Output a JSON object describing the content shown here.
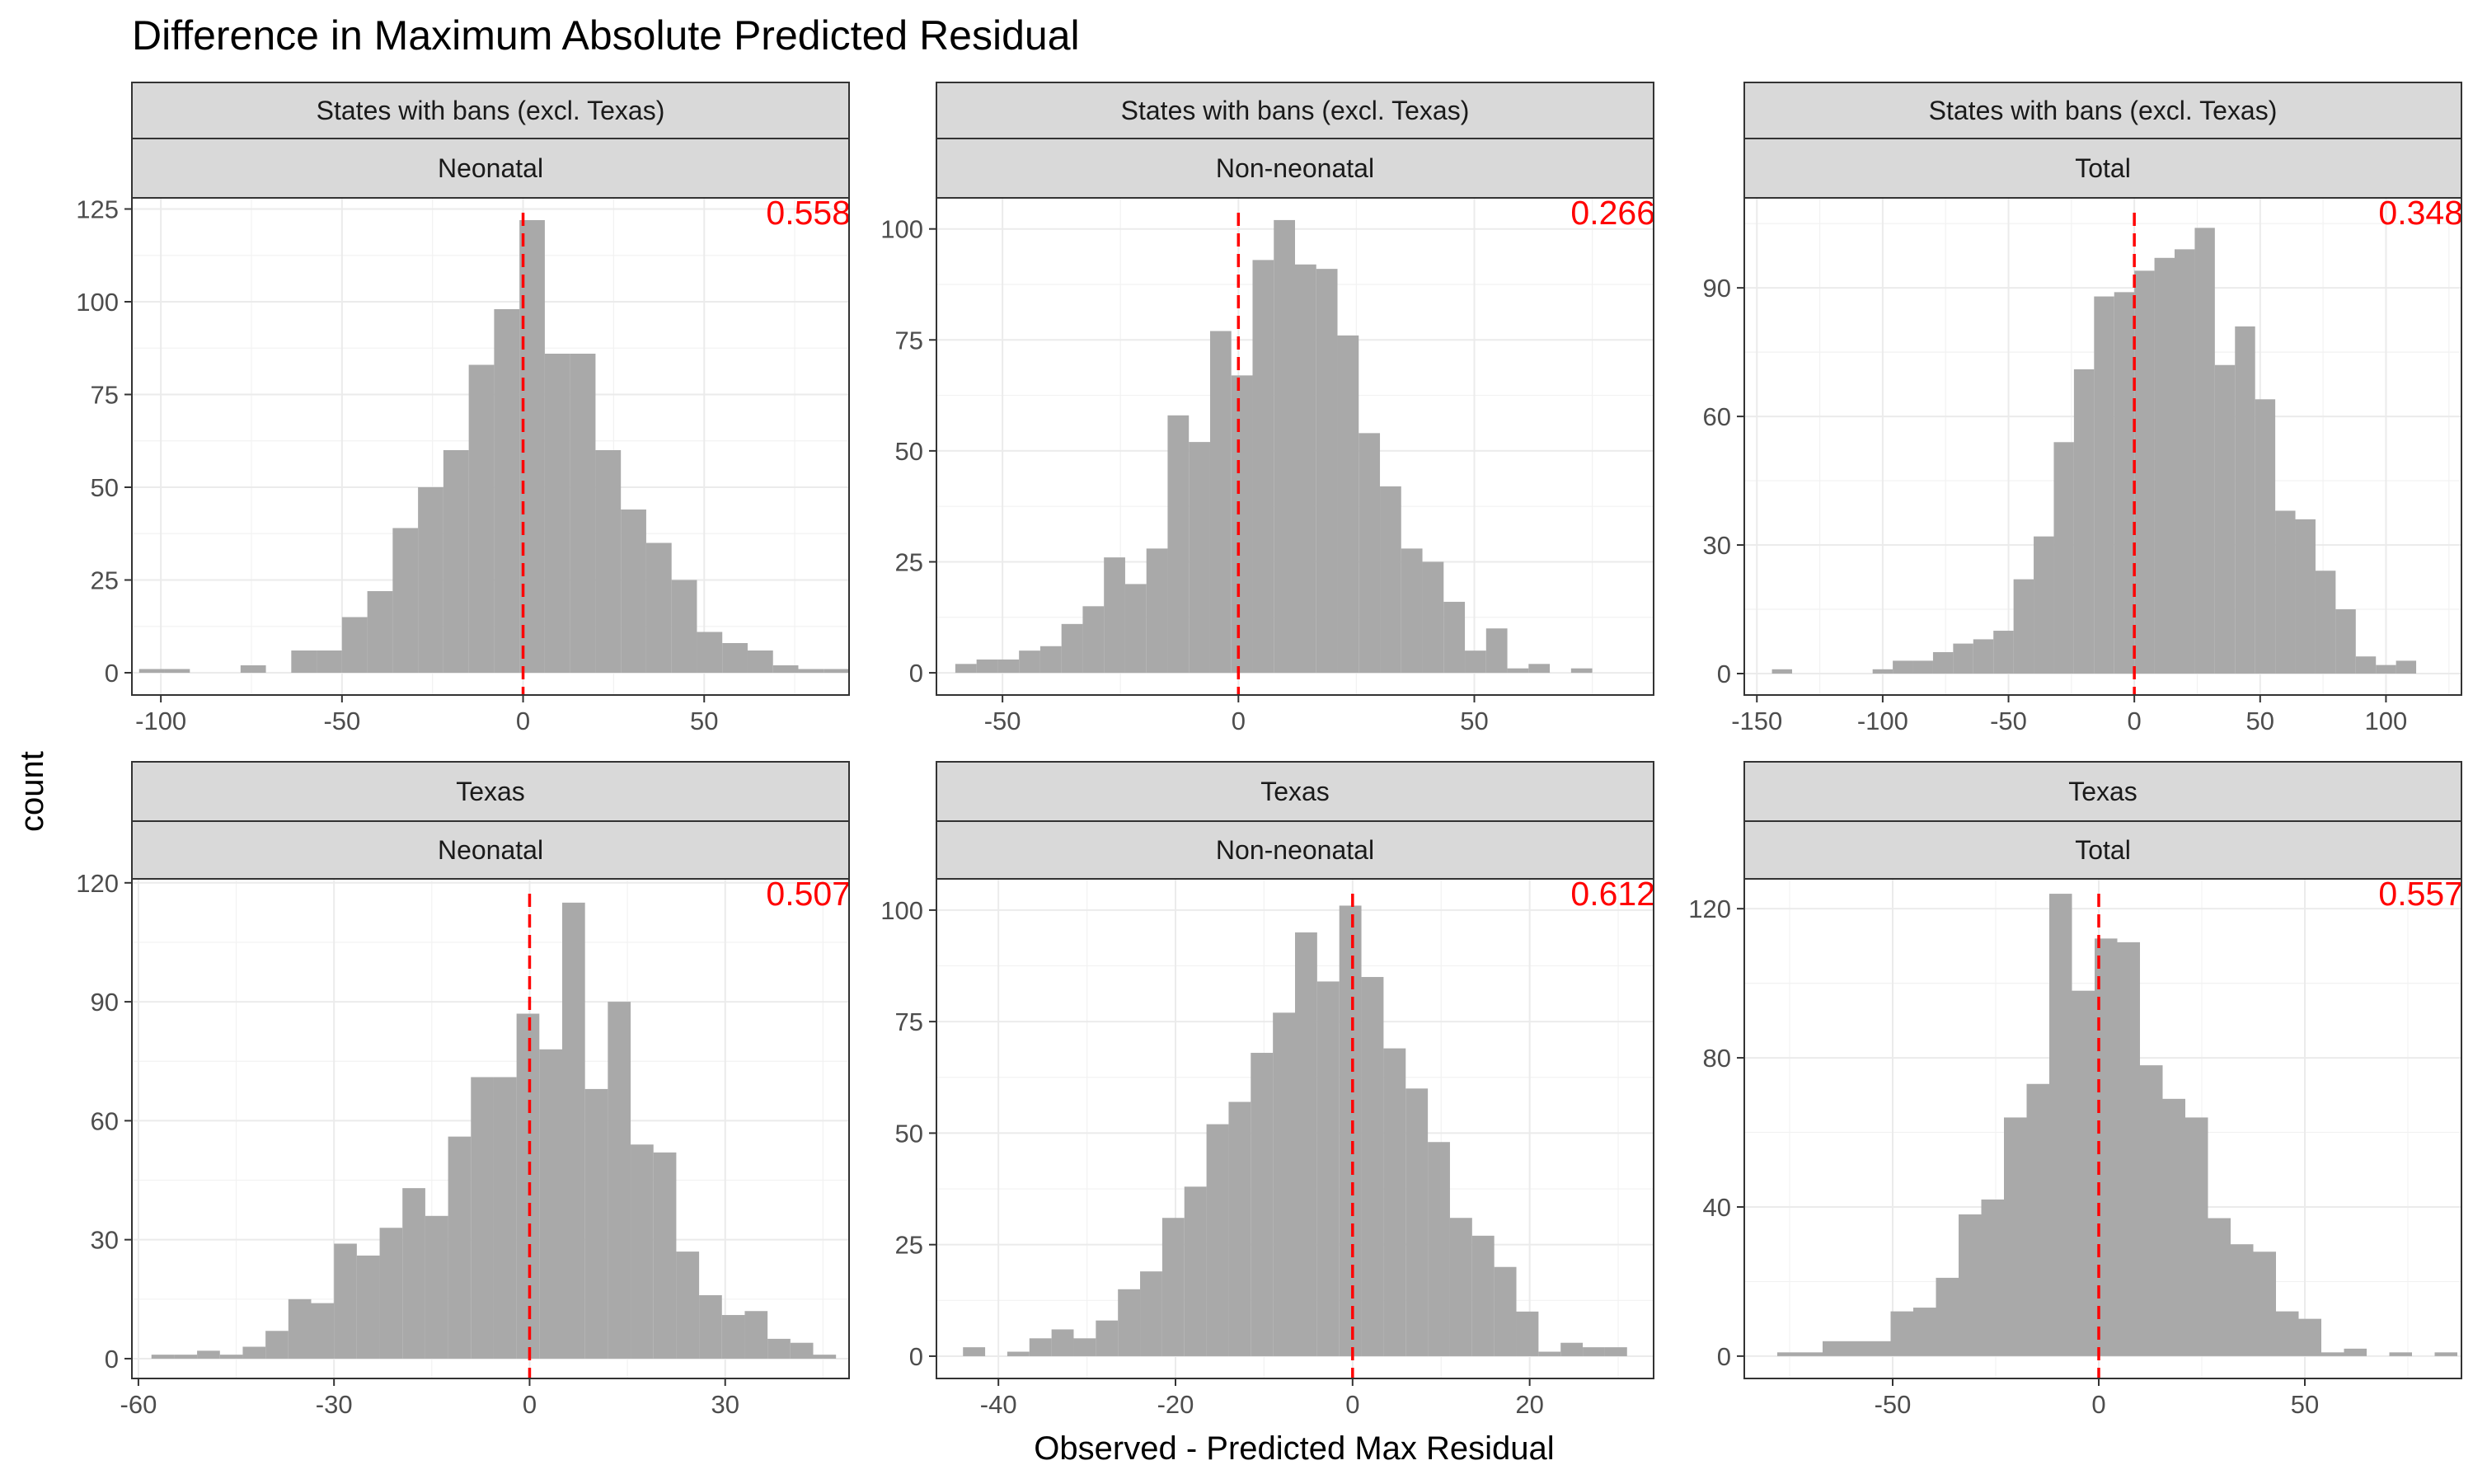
{
  "title": "Difference in Maximum Absolute Predicted Residual",
  "xlabel": "Observed - Predicted Max Residual",
  "ylabel": "count",
  "colors": {
    "bar": "#a9a9a9",
    "reference_line": "#ff0000",
    "pvalue": "#ff0000",
    "strip": "#d9d9d9",
    "grid": "#ebebeb"
  },
  "chart_data": [
    {
      "type": "bar",
      "group": "States with bans (excl. Texas)",
      "outcome": "Neonatal",
      "pvalue": "0.558",
      "reference_x": 0,
      "x_range": [
        -108,
        90
      ],
      "y_range": [
        -6,
        128
      ],
      "x_ticks": [
        -100,
        -50,
        0,
        50
      ],
      "y_ticks": [
        0,
        25,
        50,
        75,
        100,
        125
      ],
      "bins": [
        {
          "x0": -106,
          "x1": -99,
          "count": 1
        },
        {
          "x0": -99,
          "x1": -92,
          "count": 1
        },
        {
          "x0": -92,
          "x1": -85,
          "count": 0
        },
        {
          "x0": -85,
          "x1": -78,
          "count": 0
        },
        {
          "x0": -78,
          "x1": -71,
          "count": 2
        },
        {
          "x0": -71,
          "x1": -64,
          "count": 0
        },
        {
          "x0": -64,
          "x1": -57,
          "count": 6
        },
        {
          "x0": -57,
          "x1": -50,
          "count": 6
        },
        {
          "x0": -50,
          "x1": -43,
          "count": 15
        },
        {
          "x0": -43,
          "x1": -36,
          "count": 22
        },
        {
          "x0": -36,
          "x1": -29,
          "count": 39
        },
        {
          "x0": -29,
          "x1": -22,
          "count": 50
        },
        {
          "x0": -22,
          "x1": -15,
          "count": 60
        },
        {
          "x0": -15,
          "x1": -8,
          "count": 83
        },
        {
          "x0": -8,
          "x1": -1,
          "count": 98
        },
        {
          "x0": -1,
          "x1": 6,
          "count": 122
        },
        {
          "x0": 6,
          "x1": 13,
          "count": 86
        },
        {
          "x0": 13,
          "x1": 20,
          "count": 86
        },
        {
          "x0": 20,
          "x1": 27,
          "count": 60
        },
        {
          "x0": 27,
          "x1": 34,
          "count": 44
        },
        {
          "x0": 34,
          "x1": 41,
          "count": 35
        },
        {
          "x0": 41,
          "x1": 48,
          "count": 25
        },
        {
          "x0": 48,
          "x1": 55,
          "count": 11
        },
        {
          "x0": 55,
          "x1": 62,
          "count": 8
        },
        {
          "x0": 62,
          "x1": 69,
          "count": 6
        },
        {
          "x0": 69,
          "x1": 76,
          "count": 2
        },
        {
          "x0": 76,
          "x1": 83,
          "count": 1
        },
        {
          "x0": 83,
          "x1": 90,
          "count": 1
        }
      ]
    },
    {
      "type": "bar",
      "group": "States with bans (excl. Texas)",
      "outcome": "Non-neonatal",
      "pvalue": "0.266",
      "reference_x": 0,
      "x_range": [
        -64,
        88
      ],
      "y_range": [
        -5,
        107
      ],
      "x_ticks": [
        -50,
        0,
        50
      ],
      "y_ticks": [
        0,
        25,
        50,
        75,
        100
      ],
      "bins": [
        {
          "x0": -60,
          "x1": -55.5,
          "count": 2
        },
        {
          "x0": -55.5,
          "x1": -51,
          "count": 3
        },
        {
          "x0": -51,
          "x1": -46.5,
          "count": 3
        },
        {
          "x0": -46.5,
          "x1": -42,
          "count": 5
        },
        {
          "x0": -42,
          "x1": -37.5,
          "count": 6
        },
        {
          "x0": -37.5,
          "x1": -33,
          "count": 11
        },
        {
          "x0": -33,
          "x1": -28.5,
          "count": 15
        },
        {
          "x0": -28.5,
          "x1": -24,
          "count": 26
        },
        {
          "x0": -24,
          "x1": -19.5,
          "count": 20
        },
        {
          "x0": -19.5,
          "x1": -15,
          "count": 28
        },
        {
          "x0": -15,
          "x1": -10.5,
          "count": 58
        },
        {
          "x0": -10.5,
          "x1": -6,
          "count": 52
        },
        {
          "x0": -6,
          "x1": -1.5,
          "count": 77
        },
        {
          "x0": -1.5,
          "x1": 3,
          "count": 67
        },
        {
          "x0": 3,
          "x1": 7.5,
          "count": 93
        },
        {
          "x0": 7.5,
          "x1": 12,
          "count": 102
        },
        {
          "x0": 12,
          "x1": 16.5,
          "count": 92
        },
        {
          "x0": 16.5,
          "x1": 21,
          "count": 91
        },
        {
          "x0": 21,
          "x1": 25.5,
          "count": 76
        },
        {
          "x0": 25.5,
          "x1": 30,
          "count": 54
        },
        {
          "x0": 30,
          "x1": 34.5,
          "count": 42
        },
        {
          "x0": 34.5,
          "x1": 39,
          "count": 28
        },
        {
          "x0": 39,
          "x1": 43.5,
          "count": 25
        },
        {
          "x0": 43.5,
          "x1": 48,
          "count": 16
        },
        {
          "x0": 48,
          "x1": 52.5,
          "count": 5
        },
        {
          "x0": 52.5,
          "x1": 57,
          "count": 10
        },
        {
          "x0": 57,
          "x1": 61.5,
          "count": 1
        },
        {
          "x0": 61.5,
          "x1": 66,
          "count": 2
        },
        {
          "x0": 66,
          "x1": 70.5,
          "count": 0
        },
        {
          "x0": 70.5,
          "x1": 75,
          "count": 1
        }
      ]
    },
    {
      "type": "bar",
      "group": "States with bans (excl. Texas)",
      "outcome": "Total",
      "pvalue": "0.348",
      "reference_x": 0,
      "x_range": [
        -155,
        130
      ],
      "y_range": [
        -5,
        111
      ],
      "x_ticks": [
        -150,
        -100,
        -50,
        0,
        50,
        100
      ],
      "y_ticks": [
        0,
        30,
        60,
        90
      ],
      "bins": [
        {
          "x0": -144,
          "x1": -136,
          "count": 1
        },
        {
          "x0": -104,
          "x1": -96,
          "count": 1
        },
        {
          "x0": -96,
          "x1": -88,
          "count": 3
        },
        {
          "x0": -88,
          "x1": -80,
          "count": 3
        },
        {
          "x0": -80,
          "x1": -72,
          "count": 5
        },
        {
          "x0": -72,
          "x1": -64,
          "count": 7
        },
        {
          "x0": -64,
          "x1": -56,
          "count": 8
        },
        {
          "x0": -56,
          "x1": -48,
          "count": 10
        },
        {
          "x0": -48,
          "x1": -40,
          "count": 22
        },
        {
          "x0": -40,
          "x1": -32,
          "count": 32
        },
        {
          "x0": -32,
          "x1": -24,
          "count": 54
        },
        {
          "x0": -24,
          "x1": -16,
          "count": 71
        },
        {
          "x0": -16,
          "x1": -8,
          "count": 88
        },
        {
          "x0": -8,
          "x1": 0,
          "count": 89
        },
        {
          "x0": 0,
          "x1": 8,
          "count": 94
        },
        {
          "x0": 8,
          "x1": 16,
          "count": 97
        },
        {
          "x0": 16,
          "x1": 24,
          "count": 99
        },
        {
          "x0": 24,
          "x1": 32,
          "count": 104
        },
        {
          "x0": 32,
          "x1": 40,
          "count": 72
        },
        {
          "x0": 40,
          "x1": 48,
          "count": 81
        },
        {
          "x0": 48,
          "x1": 56,
          "count": 64
        },
        {
          "x0": 56,
          "x1": 64,
          "count": 38
        },
        {
          "x0": 64,
          "x1": 72,
          "count": 36
        },
        {
          "x0": 72,
          "x1": 80,
          "count": 24
        },
        {
          "x0": 80,
          "x1": 88,
          "count": 15
        },
        {
          "x0": 88,
          "x1": 96,
          "count": 4
        },
        {
          "x0": 96,
          "x1": 104,
          "count": 2
        },
        {
          "x0": 104,
          "x1": 112,
          "count": 3
        }
      ]
    },
    {
      "type": "bar",
      "group": "Texas",
      "outcome": "Neonatal",
      "pvalue": "0.507",
      "reference_x": 0,
      "x_range": [
        -61,
        49
      ],
      "y_range": [
        -5,
        121
      ],
      "x_ticks": [
        -60,
        -30,
        0,
        30
      ],
      "y_ticks": [
        0,
        30,
        60,
        90,
        120
      ],
      "bins": [
        {
          "x0": -58,
          "x1": -54.5,
          "count": 1
        },
        {
          "x0": -54.5,
          "x1": -51,
          "count": 1
        },
        {
          "x0": -51,
          "x1": -47.5,
          "count": 2
        },
        {
          "x0": -47.5,
          "x1": -44,
          "count": 1
        },
        {
          "x0": -44,
          "x1": -40.5,
          "count": 3
        },
        {
          "x0": -40.5,
          "x1": -37,
          "count": 7
        },
        {
          "x0": -37,
          "x1": -33.5,
          "count": 15
        },
        {
          "x0": -33.5,
          "x1": -30,
          "count": 14
        },
        {
          "x0": -30,
          "x1": -26.5,
          "count": 29
        },
        {
          "x0": -26.5,
          "x1": -23,
          "count": 26
        },
        {
          "x0": -23,
          "x1": -19.5,
          "count": 33
        },
        {
          "x0": -19.5,
          "x1": -16,
          "count": 43
        },
        {
          "x0": -16,
          "x1": -12.5,
          "count": 36
        },
        {
          "x0": -12.5,
          "x1": -9,
          "count": 56
        },
        {
          "x0": -9,
          "x1": -5.5,
          "count": 71
        },
        {
          "x0": -5.5,
          "x1": -2,
          "count": 71
        },
        {
          "x0": -2,
          "x1": 1.5,
          "count": 87
        },
        {
          "x0": 1.5,
          "x1": 5,
          "count": 78
        },
        {
          "x0": 5,
          "x1": 8.5,
          "count": 115
        },
        {
          "x0": 8.5,
          "x1": 12,
          "count": 68
        },
        {
          "x0": 12,
          "x1": 15.5,
          "count": 90
        },
        {
          "x0": 15.5,
          "x1": 19,
          "count": 54
        },
        {
          "x0": 19,
          "x1": 22.5,
          "count": 52
        },
        {
          "x0": 22.5,
          "x1": 26,
          "count": 27
        },
        {
          "x0": 26,
          "x1": 29.5,
          "count": 16
        },
        {
          "x0": 29.5,
          "x1": 33,
          "count": 11
        },
        {
          "x0": 33,
          "x1": 36.5,
          "count": 12
        },
        {
          "x0": 36.5,
          "x1": 40,
          "count": 5
        },
        {
          "x0": 40,
          "x1": 43.5,
          "count": 4
        },
        {
          "x0": 43.5,
          "x1": 47,
          "count": 1
        }
      ]
    },
    {
      "type": "bar",
      "group": "Texas",
      "outcome": "Non-neonatal",
      "pvalue": "0.612",
      "reference_x": 0,
      "x_range": [
        -47,
        34
      ],
      "y_range": [
        -5,
        107
      ],
      "x_ticks": [
        -40,
        -20,
        0,
        20
      ],
      "y_ticks": [
        0,
        25,
        50,
        75,
        100
      ],
      "bins": [
        {
          "x0": -44,
          "x1": -41.5,
          "count": 2
        },
        {
          "x0": -41.5,
          "x1": -39,
          "count": 0
        },
        {
          "x0": -39,
          "x1": -36.5,
          "count": 1
        },
        {
          "x0": -36.5,
          "x1": -34,
          "count": 4
        },
        {
          "x0": -34,
          "x1": -31.5,
          "count": 6
        },
        {
          "x0": -31.5,
          "x1": -29,
          "count": 4
        },
        {
          "x0": -29,
          "x1": -26.5,
          "count": 8
        },
        {
          "x0": -26.5,
          "x1": -24,
          "count": 15
        },
        {
          "x0": -24,
          "x1": -21.5,
          "count": 19
        },
        {
          "x0": -21.5,
          "x1": -19,
          "count": 31
        },
        {
          "x0": -19,
          "x1": -16.5,
          "count": 38
        },
        {
          "x0": -16.5,
          "x1": -14,
          "count": 52
        },
        {
          "x0": -14,
          "x1": -11.5,
          "count": 57
        },
        {
          "x0": -11.5,
          "x1": -9,
          "count": 68
        },
        {
          "x0": -9,
          "x1": -6.5,
          "count": 77
        },
        {
          "x0": -6.5,
          "x1": -4,
          "count": 95
        },
        {
          "x0": -4,
          "x1": -1.5,
          "count": 84
        },
        {
          "x0": -1.5,
          "x1": 1,
          "count": 101
        },
        {
          "x0": 1,
          "x1": 3.5,
          "count": 85
        },
        {
          "x0": 3.5,
          "x1": 6,
          "count": 69
        },
        {
          "x0": 6,
          "x1": 8.5,
          "count": 60
        },
        {
          "x0": 8.5,
          "x1": 11,
          "count": 48
        },
        {
          "x0": 11,
          "x1": 13.5,
          "count": 31
        },
        {
          "x0": 13.5,
          "x1": 16,
          "count": 27
        },
        {
          "x0": 16,
          "x1": 18.5,
          "count": 20
        },
        {
          "x0": 18.5,
          "x1": 21,
          "count": 10
        },
        {
          "x0": 21,
          "x1": 23.5,
          "count": 1
        },
        {
          "x0": 23.5,
          "x1": 26,
          "count": 3
        },
        {
          "x0": 26,
          "x1": 28.5,
          "count": 2
        },
        {
          "x0": 28.5,
          "x1": 31,
          "count": 2
        }
      ]
    },
    {
      "type": "bar",
      "group": "Texas",
      "outcome": "Total",
      "pvalue": "0.557",
      "reference_x": 0,
      "x_range": [
        -86,
        88
      ],
      "y_range": [
        -6,
        128
      ],
      "x_ticks": [
        -50,
        0,
        50
      ],
      "y_ticks": [
        0,
        40,
        80,
        120
      ],
      "bins": [
        {
          "x0": -78,
          "x1": -72.5,
          "count": 1
        },
        {
          "x0": -72.5,
          "x1": -67,
          "count": 1
        },
        {
          "x0": -67,
          "x1": -61.5,
          "count": 4
        },
        {
          "x0": -61.5,
          "x1": -56,
          "count": 4
        },
        {
          "x0": -56,
          "x1": -50.5,
          "count": 4
        },
        {
          "x0": -50.5,
          "x1": -45,
          "count": 12
        },
        {
          "x0": -45,
          "x1": -39.5,
          "count": 13
        },
        {
          "x0": -39.5,
          "x1": -34,
          "count": 21
        },
        {
          "x0": -34,
          "x1": -28.5,
          "count": 38
        },
        {
          "x0": -28.5,
          "x1": -23,
          "count": 42
        },
        {
          "x0": -23,
          "x1": -17.5,
          "count": 64
        },
        {
          "x0": -17.5,
          "x1": -12,
          "count": 73
        },
        {
          "x0": -12,
          "x1": -6.5,
          "count": 124
        },
        {
          "x0": -6.5,
          "x1": -1,
          "count": 98
        },
        {
          "x0": -1,
          "x1": 4.5,
          "count": 112
        },
        {
          "x0": 4.5,
          "x1": 10,
          "count": 111
        },
        {
          "x0": 10,
          "x1": 15.5,
          "count": 78
        },
        {
          "x0": 15.5,
          "x1": 21,
          "count": 69
        },
        {
          "x0": 21,
          "x1": 26.5,
          "count": 64
        },
        {
          "x0": 26.5,
          "x1": 32,
          "count": 37
        },
        {
          "x0": 32,
          "x1": 37.5,
          "count": 30
        },
        {
          "x0": 37.5,
          "x1": 43,
          "count": 28
        },
        {
          "x0": 43,
          "x1": 48.5,
          "count": 12
        },
        {
          "x0": 48.5,
          "x1": 54,
          "count": 10
        },
        {
          "x0": 54,
          "x1": 59.5,
          "count": 1
        },
        {
          "x0": 59.5,
          "x1": 65,
          "count": 2
        },
        {
          "x0": 65,
          "x1": 70.5,
          "count": 0
        },
        {
          "x0": 70.5,
          "x1": 76,
          "count": 1
        },
        {
          "x0": 76,
          "x1": 81.5,
          "count": 0
        },
        {
          "x0": 81.5,
          "x1": 87,
          "count": 1
        }
      ]
    }
  ]
}
